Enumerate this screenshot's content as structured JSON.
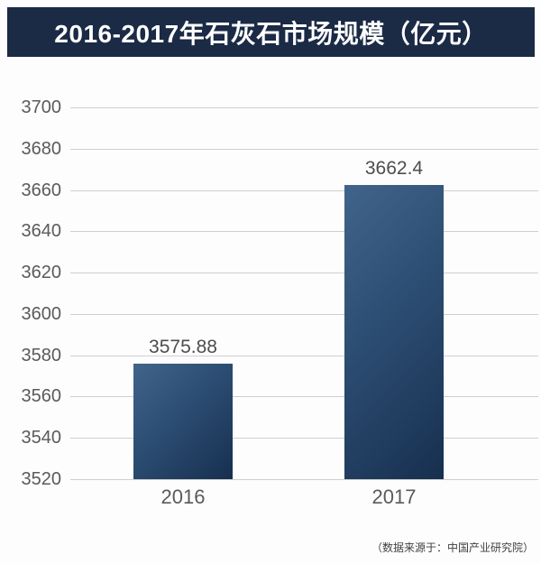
{
  "header": {
    "title": "2016-2017年石灰石市场规模（亿元）",
    "background_color": "#1b2a45",
    "text_color": "#ffffff"
  },
  "footer": {
    "source": "（数据来源于：中国产业研究院）"
  },
  "chart_data": {
    "type": "bar",
    "title": "2016-2017年石灰石市场规模（亿元）",
    "categories": [
      "2016",
      "2017"
    ],
    "values": [
      3575.88,
      3662.4
    ],
    "data_labels": [
      "3575.88",
      "3662.4"
    ],
    "xlabel": "",
    "ylabel": "",
    "ylim": [
      3520,
      3700
    ],
    "yticks": [
      3520,
      3540,
      3560,
      3580,
      3600,
      3620,
      3640,
      3660,
      3680,
      3700
    ],
    "grid": "horizontal",
    "gridline_color": "#cfcfcf",
    "legend_position": "none",
    "bar_gradient": [
      "#41648a",
      "#172f4f"
    ],
    "source_note": "（数据来源于：中国产业研究院）"
  }
}
